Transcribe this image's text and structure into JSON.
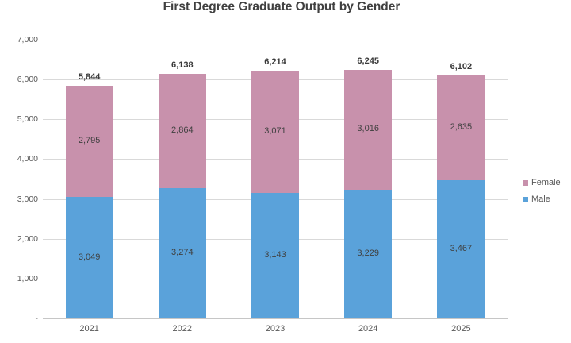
{
  "chart_data": {
    "type": "bar",
    "stacked": true,
    "title": "First Degree Graduate Output by Gender",
    "categories": [
      "2021",
      "2022",
      "2023",
      "2024",
      "2025"
    ],
    "series": [
      {
        "name": "Male",
        "color": "#5AA2DA",
        "values": [
          3049,
          3274,
          3143,
          3229,
          3467
        ]
      },
      {
        "name": "Female",
        "color": "#C891AC",
        "values": [
          2795,
          2864,
          3071,
          3016,
          2635
        ]
      }
    ],
    "totals": [
      5844,
      6138,
      6214,
      6245,
      6102
    ],
    "totals_labels": [
      "5,844",
      "6,138",
      "6,214",
      "6,245",
      "6,102"
    ],
    "xlabel": "",
    "ylabel": "",
    "ylim": [
      0,
      7000
    ],
    "ytick_step": 1000,
    "ytick_labels": [
      "-",
      "1,000",
      "2,000",
      "3,000",
      "4,000",
      "5,000",
      "6,000",
      "7,000"
    ],
    "grid": true,
    "legend_position": "right",
    "legend_order": [
      "Female",
      "Male"
    ],
    "colors": {
      "gridline": "#d9d9d9",
      "axis_line": "#c6c6c6",
      "title_text": "#404040",
      "tick_text": "#595959",
      "data_label_text": "#404040"
    }
  }
}
